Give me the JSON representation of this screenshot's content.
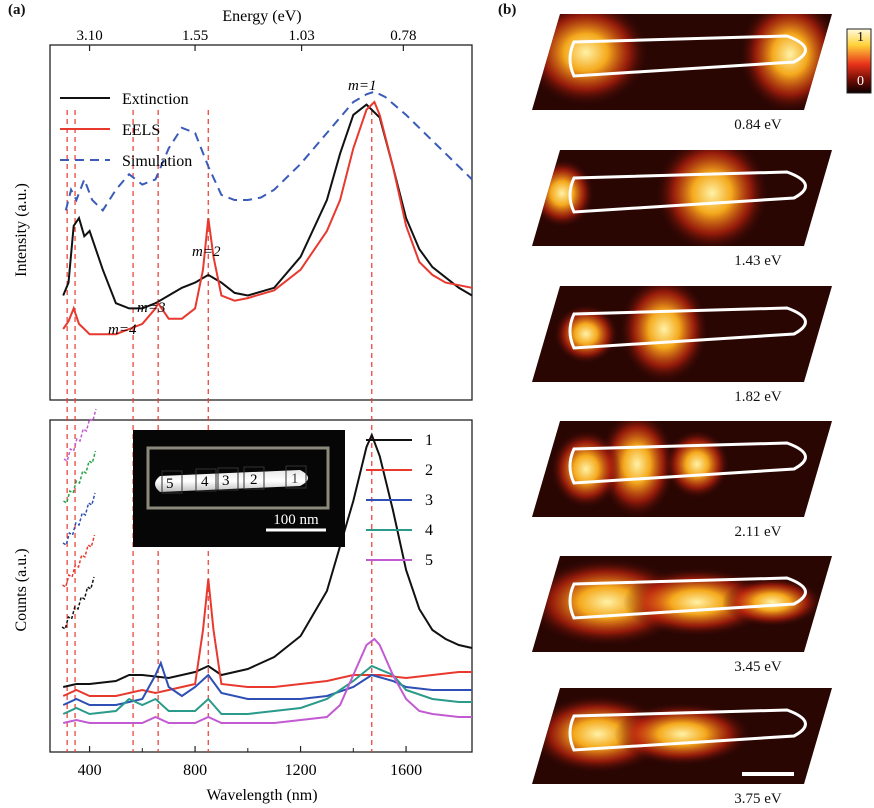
{
  "panel_a": {
    "label": "(a)",
    "top_axis": {
      "title": "Energy (eV)",
      "ticks": [
        "3.10",
        "1.55",
        "1.03",
        "0.78"
      ]
    },
    "top_plot": {
      "ylabel": "Intensity (a.u.)",
      "legend": [
        "Extinction",
        "EELS",
        "Simulation"
      ],
      "mode_labels": [
        "m=1",
        "m=2",
        "m=3",
        "m=4"
      ]
    },
    "bottom_plot": {
      "ylabel": "Counts (a.u.)",
      "xlabel": "Wavelength (nm)",
      "xticks": [
        "400",
        "800",
        "1200",
        "1600"
      ],
      "legend": [
        "1",
        "2",
        "3",
        "4",
        "5"
      ],
      "inset": {
        "positions": [
          "5",
          "4",
          "3",
          "2",
          "1"
        ],
        "scalebar": "100 nm"
      }
    }
  },
  "panel_b": {
    "label": "(b)",
    "colorbar": {
      "max": "1",
      "min": "0"
    },
    "maps": [
      "0.84 eV",
      "1.43 eV",
      "1.82 eV",
      "2.11 eV",
      "3.45 eV",
      "3.75 eV"
    ]
  },
  "colors": {
    "extinction": "#111111",
    "eels": "#e8392f",
    "simulation": "#3a5bb8",
    "s3": "#2e4fb5",
    "s4": "#2a9a8a",
    "s5": "#c25ad2"
  },
  "chart_data": [
    {
      "type": "line",
      "ylabel": "Intensity (a.u.)",
      "xlim": [
        250,
        1850
      ],
      "series": [
        {
          "name": "Extinction",
          "x": [
            300,
            320,
            340,
            360,
            380,
            400,
            450,
            500,
            550,
            600,
            650,
            700,
            750,
            800,
            850,
            900,
            950,
            1000,
            1100,
            1200,
            1300,
            1350,
            1400,
            1450,
            1500,
            1550,
            1600,
            1650,
            1700,
            1750,
            1800,
            1850
          ],
          "y": [
            0.25,
            0.3,
            0.52,
            0.55,
            0.48,
            0.5,
            0.35,
            0.22,
            0.2,
            0.2,
            0.22,
            0.25,
            0.28,
            0.3,
            0.33,
            0.3,
            0.26,
            0.25,
            0.28,
            0.4,
            0.62,
            0.8,
            0.95,
            0.99,
            0.94,
            0.75,
            0.55,
            0.43,
            0.36,
            0.32,
            0.28,
            0.25
          ]
        },
        {
          "name": "EELS",
          "x": [
            300,
            320,
            340,
            360,
            380,
            400,
            450,
            500,
            550,
            600,
            650,
            660,
            700,
            750,
            800,
            830,
            850,
            870,
            900,
            950,
            1000,
            1100,
            1200,
            1300,
            1350,
            1400,
            1450,
            1480,
            1500,
            1550,
            1600,
            1650,
            1700,
            1750,
            1800,
            1850
          ],
          "y": [
            0.12,
            0.15,
            0.2,
            0.14,
            0.12,
            0.1,
            0.1,
            0.1,
            0.12,
            0.14,
            0.2,
            0.22,
            0.16,
            0.16,
            0.2,
            0.35,
            0.55,
            0.4,
            0.25,
            0.23,
            0.24,
            0.27,
            0.35,
            0.5,
            0.62,
            0.82,
            0.97,
            1.0,
            0.95,
            0.75,
            0.52,
            0.38,
            0.33,
            0.3,
            0.29,
            0.28
          ]
        },
        {
          "name": "Simulation",
          "x": [
            310,
            330,
            350,
            380,
            410,
            450,
            500,
            550,
            600,
            650,
            700,
            750,
            800,
            850,
            900,
            950,
            1000,
            1050,
            1100,
            1200,
            1300,
            1400,
            1450,
            1480,
            1520,
            1600,
            1700,
            1800,
            1850
          ],
          "y": [
            0.58,
            0.66,
            0.62,
            0.7,
            0.62,
            0.58,
            0.66,
            0.72,
            0.68,
            0.7,
            0.82,
            0.9,
            0.88,
            0.75,
            0.64,
            0.62,
            0.62,
            0.63,
            0.66,
            0.76,
            0.88,
            1.0,
            1.03,
            1.04,
            1.02,
            0.95,
            0.85,
            0.75,
            0.7
          ]
        }
      ]
    },
    {
      "type": "line",
      "ylabel": "Counts (a.u.)",
      "xlabel": "Wavelength (nm)",
      "xlim": [
        250,
        1850
      ],
      "series": [
        {
          "name": "1",
          "x": [
            300,
            350,
            400,
            500,
            550,
            600,
            700,
            800,
            850,
            900,
            1000,
            1100,
            1200,
            1300,
            1400,
            1450,
            1470,
            1500,
            1550,
            1600,
            1650,
            1700,
            1750,
            1800,
            1850
          ],
          "y": [
            0.16,
            0.17,
            0.17,
            0.18,
            0.2,
            0.2,
            0.19,
            0.21,
            0.23,
            0.2,
            0.22,
            0.26,
            0.33,
            0.48,
            0.78,
            0.96,
            1.0,
            0.93,
            0.75,
            0.55,
            0.42,
            0.35,
            0.32,
            0.3,
            0.29
          ]
        },
        {
          "name": "2",
          "x": [
            300,
            350,
            400,
            500,
            550,
            600,
            650,
            700,
            800,
            830,
            850,
            870,
            900,
            1000,
            1100,
            1200,
            1300,
            1400,
            1500,
            1600,
            1700,
            1800,
            1850
          ],
          "y": [
            0.13,
            0.15,
            0.13,
            0.13,
            0.14,
            0.15,
            0.14,
            0.15,
            0.17,
            0.35,
            0.52,
            0.35,
            0.17,
            0.16,
            0.16,
            0.17,
            0.18,
            0.2,
            0.2,
            0.19,
            0.2,
            0.21,
            0.21
          ]
        },
        {
          "name": "3",
          "x": [
            300,
            350,
            400,
            500,
            600,
            650,
            670,
            700,
            750,
            800,
            850,
            900,
            1000,
            1100,
            1200,
            1300,
            1400,
            1470,
            1550,
            1600,
            1700,
            1800,
            1850
          ],
          "y": [
            0.1,
            0.12,
            0.1,
            0.1,
            0.12,
            0.2,
            0.24,
            0.16,
            0.13,
            0.16,
            0.2,
            0.14,
            0.12,
            0.12,
            0.12,
            0.13,
            0.16,
            0.2,
            0.18,
            0.16,
            0.15,
            0.15,
            0.15
          ]
        },
        {
          "name": "4",
          "x": [
            300,
            350,
            400,
            500,
            550,
            600,
            650,
            700,
            800,
            850,
            900,
            1000,
            1100,
            1200,
            1300,
            1400,
            1470,
            1550,
            1600,
            1700,
            1800,
            1850
          ],
          "y": [
            0.07,
            0.09,
            0.07,
            0.08,
            0.12,
            0.1,
            0.12,
            0.08,
            0.08,
            0.12,
            0.07,
            0.07,
            0.08,
            0.09,
            0.12,
            0.18,
            0.23,
            0.2,
            0.15,
            0.12,
            0.11,
            0.11
          ]
        },
        {
          "name": "5",
          "x": [
            300,
            350,
            400,
            500,
            600,
            650,
            700,
            800,
            850,
            900,
            1000,
            1100,
            1200,
            1300,
            1350,
            1400,
            1450,
            1480,
            1500,
            1550,
            1600,
            1650,
            1700,
            1800,
            1850
          ],
          "y": [
            0.04,
            0.05,
            0.04,
            0.04,
            0.04,
            0.06,
            0.04,
            0.04,
            0.06,
            0.04,
            0.04,
            0.04,
            0.05,
            0.06,
            0.1,
            0.2,
            0.3,
            0.32,
            0.3,
            0.2,
            0.12,
            0.08,
            0.07,
            0.06,
            0.06
          ]
        }
      ]
    }
  ]
}
